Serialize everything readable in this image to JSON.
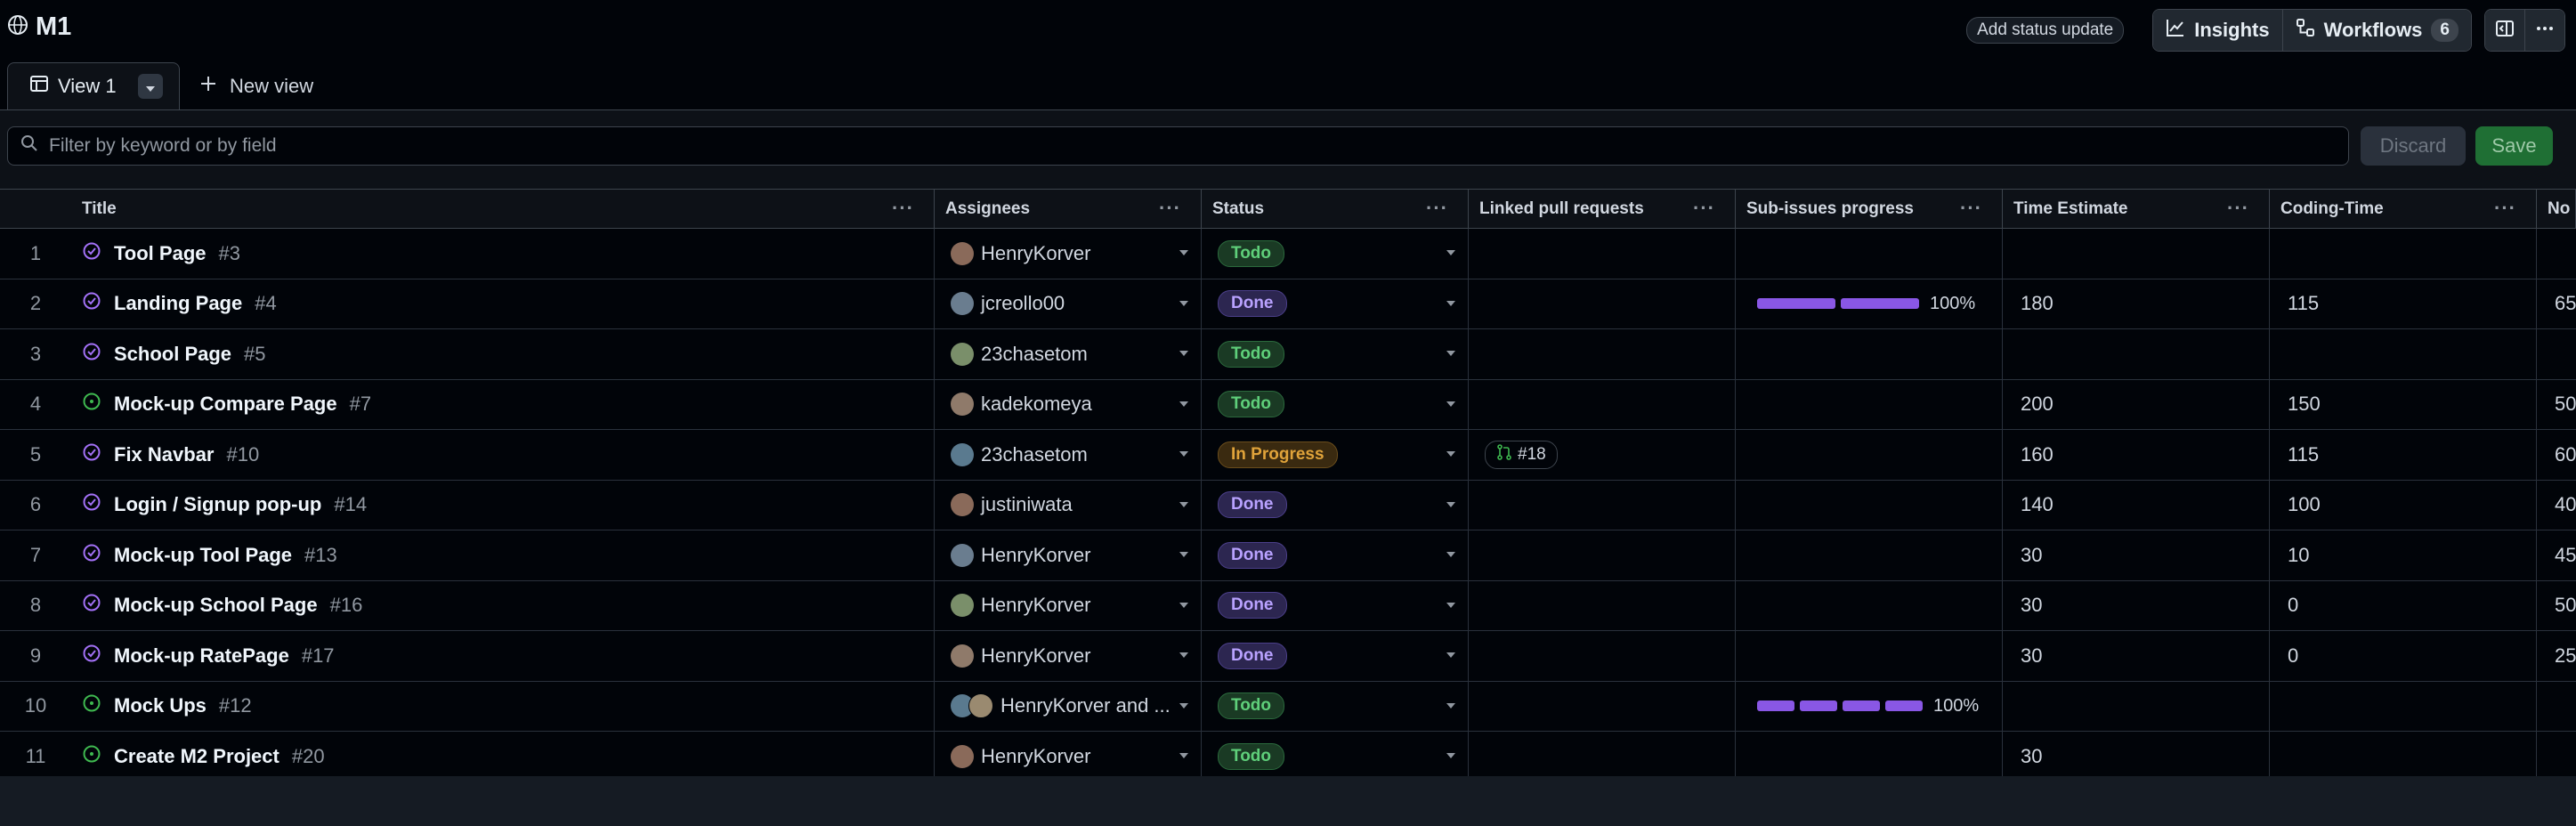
{
  "header": {
    "project_name": "M1",
    "add_status_update": "Add status update",
    "insights_label": "Insights",
    "workflows_label": "Workflows",
    "workflows_count": "6"
  },
  "tabs": {
    "active_label": "View 1",
    "new_view_label": "New view"
  },
  "filter": {
    "placeholder": "Filter by keyword or by field",
    "discard_label": "Discard",
    "save_label": "Save"
  },
  "columns": {
    "title": "Title",
    "assignees": "Assignees",
    "status": "Status",
    "linked": "Linked pull requests",
    "sub": "Sub-issues progress",
    "time": "Time Estimate",
    "coding": "Coding-Time",
    "next": "No"
  },
  "colors": {
    "todo": "#5fcf7a",
    "done": "#b9a2ff",
    "in_progress": "#e0a33a",
    "progress_bar": "#8957e5",
    "open_issue_icon": "#3fb950",
    "closed_issue_icon": "#a371f7"
  },
  "rows": [
    {
      "idx": "1",
      "title": "Tool Page",
      "num": "#3",
      "icon": "closed-issue-icon",
      "assignee": "HenryKorver",
      "status": "Todo",
      "status_kind": "todo",
      "pr": "",
      "progress_segments": 0,
      "progress": "",
      "time": "",
      "coding": "",
      "next": ""
    },
    {
      "idx": "2",
      "title": "Landing Page",
      "num": "#4",
      "icon": "closed-issue-icon",
      "assignee": "jcreollo00",
      "status": "Done",
      "status_kind": "done",
      "pr": "",
      "progress_segments": 2,
      "progress": "100%",
      "time": "180",
      "coding": "115",
      "next": "65"
    },
    {
      "idx": "3",
      "title": "School Page",
      "num": "#5",
      "icon": "closed-issue-icon",
      "assignee": "23chasetom",
      "status": "Todo",
      "status_kind": "todo",
      "pr": "",
      "progress_segments": 0,
      "progress": "",
      "time": "",
      "coding": "",
      "next": ""
    },
    {
      "idx": "4",
      "title": "Mock-up Compare Page",
      "num": "#7",
      "icon": "open-issue-icon",
      "assignee": "kadekomeya",
      "status": "Todo",
      "status_kind": "todo",
      "pr": "",
      "progress_segments": 0,
      "progress": "",
      "time": "200",
      "coding": "150",
      "next": "50"
    },
    {
      "idx": "5",
      "title": "Fix Navbar",
      "num": "#10",
      "icon": "closed-issue-icon",
      "assignee": "23chasetom",
      "status": "In Progress",
      "status_kind": "inprogress",
      "pr": "#18",
      "progress_segments": 0,
      "progress": "",
      "time": "160",
      "coding": "115",
      "next": "60"
    },
    {
      "idx": "6",
      "title": "Login / Signup pop-up",
      "num": "#14",
      "icon": "closed-issue-icon",
      "assignee": "justiniwata",
      "status": "Done",
      "status_kind": "done",
      "pr": "",
      "progress_segments": 0,
      "progress": "",
      "time": "140",
      "coding": "100",
      "next": "40"
    },
    {
      "idx": "7",
      "title": "Mock-up Tool Page",
      "num": "#13",
      "icon": "closed-issue-icon",
      "assignee": "HenryKorver",
      "status": "Done",
      "status_kind": "done",
      "pr": "",
      "progress_segments": 0,
      "progress": "",
      "time": "30",
      "coding": "10",
      "next": "45"
    },
    {
      "idx": "8",
      "title": "Mock-up School Page",
      "num": "#16",
      "icon": "closed-issue-icon",
      "assignee": "HenryKorver",
      "status": "Done",
      "status_kind": "done",
      "pr": "",
      "progress_segments": 0,
      "progress": "",
      "time": "30",
      "coding": "0",
      "next": "50"
    },
    {
      "idx": "9",
      "title": "Mock-up RatePage",
      "num": "#17",
      "icon": "closed-issue-icon",
      "assignee": "HenryKorver",
      "status": "Done",
      "status_kind": "done",
      "pr": "",
      "progress_segments": 0,
      "progress": "",
      "time": "30",
      "coding": "0",
      "next": "25"
    },
    {
      "idx": "10",
      "title": "Mock Ups",
      "num": "#12",
      "icon": "open-issue-icon",
      "assignee": "HenryKorver and ...",
      "multi": true,
      "status": "Todo",
      "status_kind": "todo",
      "pr": "",
      "progress_segments": 4,
      "progress": "100%",
      "time": "",
      "coding": "",
      "next": ""
    },
    {
      "idx": "11",
      "title": "Create M2 Project",
      "num": "#20",
      "icon": "open-issue-icon",
      "assignee": "HenryKorver",
      "status": "Todo",
      "status_kind": "todo",
      "pr": "",
      "progress_segments": 0,
      "progress": "",
      "time": "30",
      "coding": "",
      "next": ""
    }
  ]
}
